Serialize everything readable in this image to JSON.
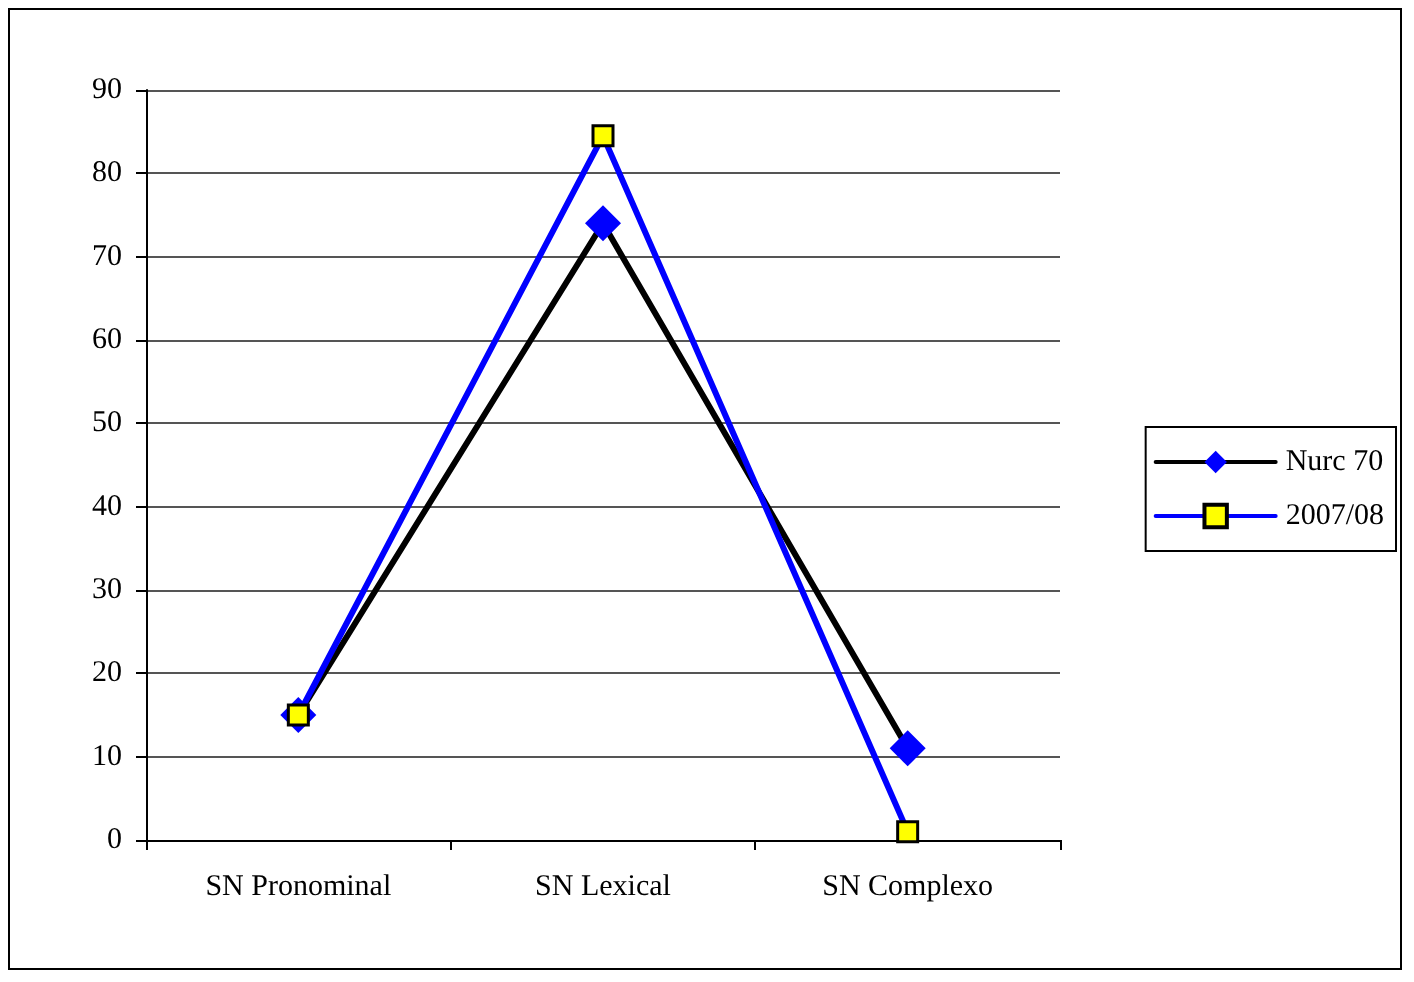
{
  "chart_data": {
    "type": "line",
    "categories": [
      "SN Pronominal",
      "SN Lexical",
      "SN Complexo"
    ],
    "series": [
      {
        "name": "Nurc 70",
        "color": "#000000",
        "marker": "diamond",
        "colors": [
          "#0000ff",
          "#0000ff",
          "#0000ff"
        ],
        "values": [
          15,
          74,
          11
        ]
      },
      {
        "name": "2007/08",
        "color": "#0000ff",
        "marker": "square",
        "colors": [
          "#ffff00",
          "#ffff00",
          "#ffff00"
        ],
        "values": [
          15,
          84.5,
          1
        ]
      }
    ],
    "ylim": [
      0,
      90
    ],
    "yticks": [
      0,
      10,
      20,
      30,
      40,
      50,
      60,
      70,
      80,
      90
    ],
    "grid": "y",
    "legend": "right",
    "line_style": "solid"
  }
}
